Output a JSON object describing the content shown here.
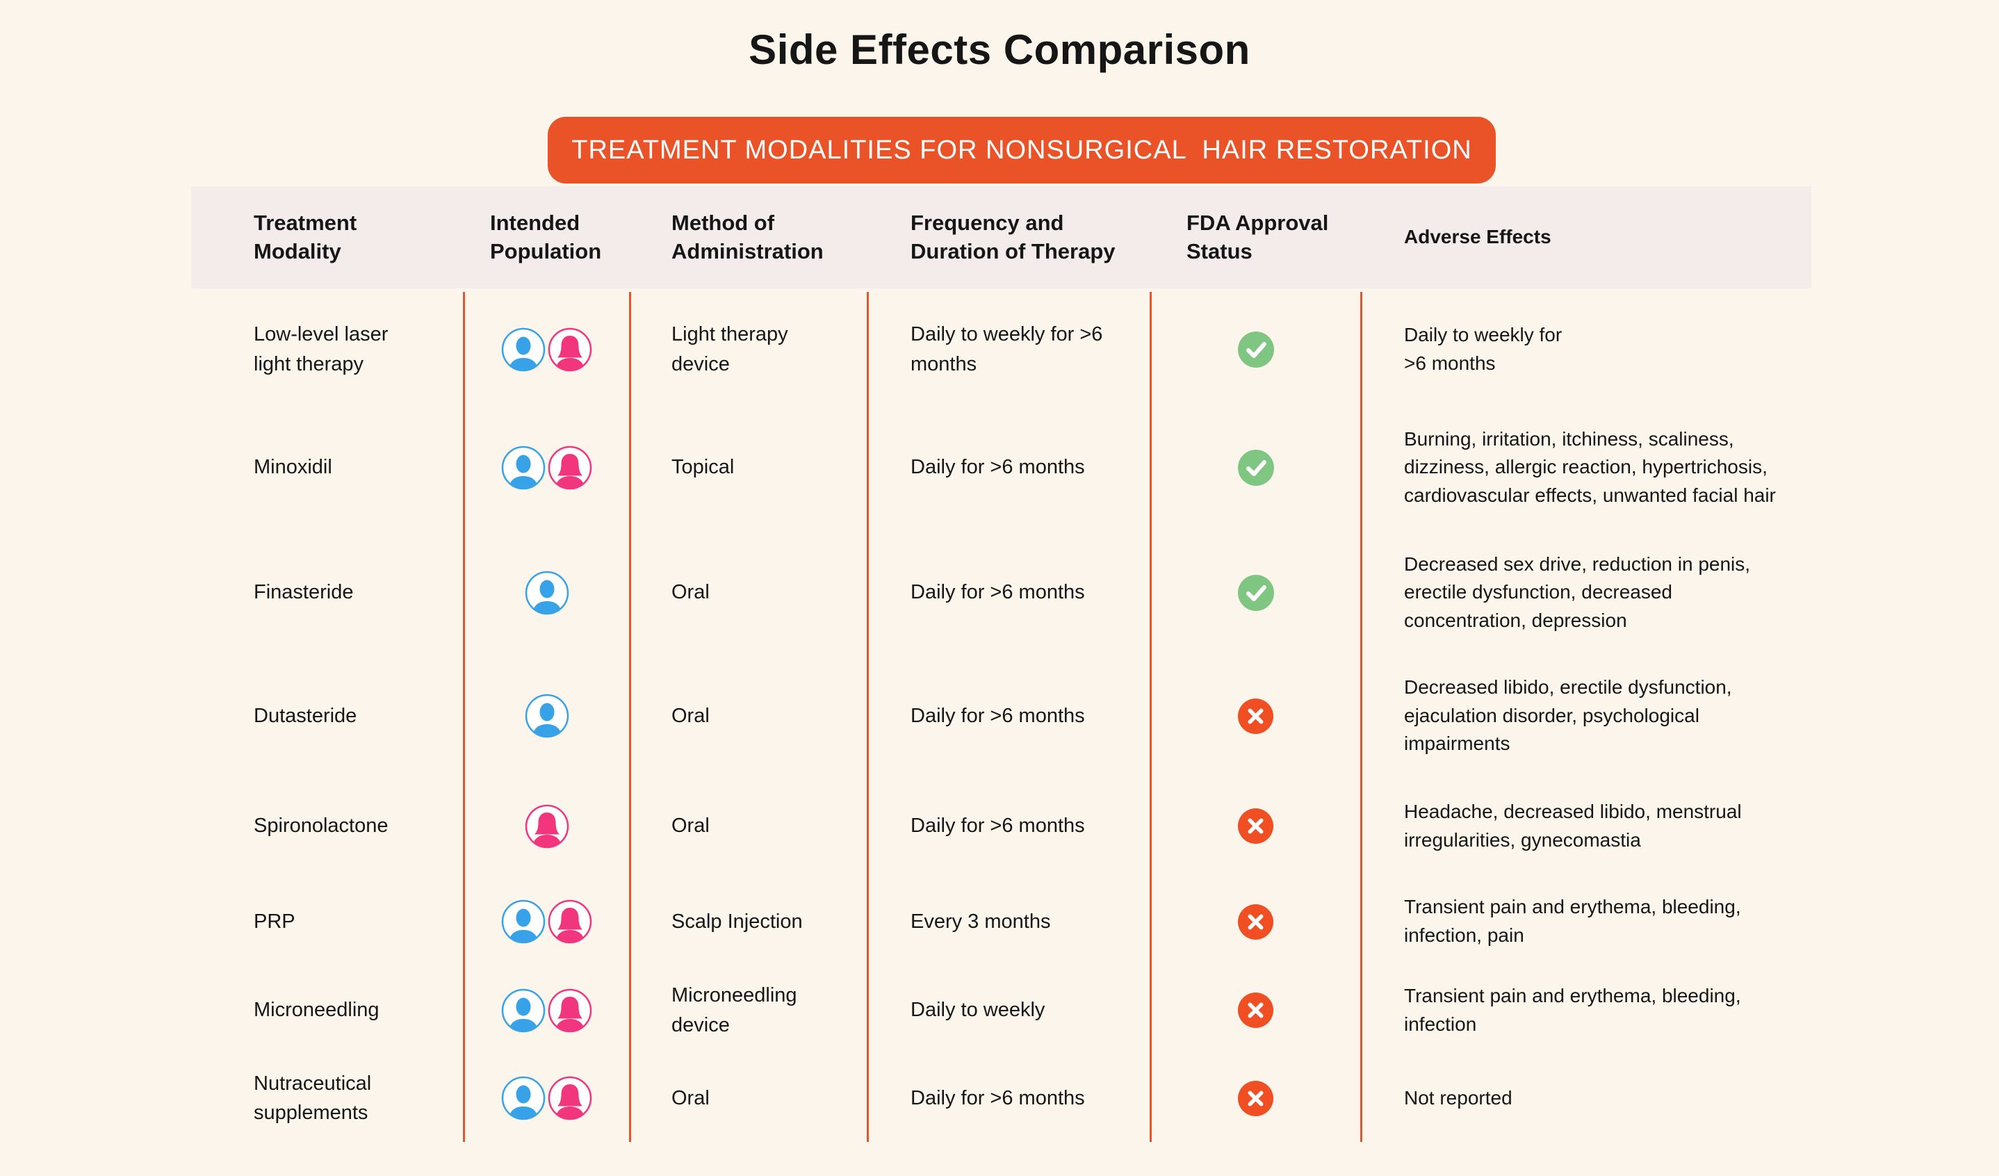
{
  "page": {
    "title": "Side Effects Comparison",
    "background_color": "#FCF5EC",
    "text_color": "#161616"
  },
  "banner": {
    "label": "TREATMENT MODALITIES FOR NONSURGICAL  HAIR RESTORATION",
    "background_color": "#E95327",
    "text_color": "#FFFFFF"
  },
  "icons": {
    "male_icon_color": "#38A2E8",
    "female_icon_color": "#F2367E",
    "approved_icon": "check-circle",
    "approved_color": "#80C683",
    "not_approved_icon": "x-circle",
    "not_approved_color": "#F04F23"
  },
  "table": {
    "header_background_color": "#F4ECEA",
    "divider_color": "#E4572E",
    "columns": [
      {
        "key": "modality",
        "label": "Treatment\nModality"
      },
      {
        "key": "population",
        "label": "Intended\nPopulation"
      },
      {
        "key": "method",
        "label": "Method of\nAdministration"
      },
      {
        "key": "frequency",
        "label": "Frequency and\nDuration of Therapy"
      },
      {
        "key": "fda",
        "label": "FDA Approval\nStatus"
      },
      {
        "key": "adverse",
        "label": "Adverse Effects"
      }
    ],
    "rows": [
      {
        "modality": "Low-level laser\nlight therapy",
        "population": [
          "male",
          "female"
        ],
        "method": "Light therapy\ndevice",
        "frequency": "Daily to weekly for >6\nmonths",
        "fda_approved": true,
        "adverse": "Daily to weekly for\n>6 months"
      },
      {
        "modality": "Minoxidil",
        "population": [
          "male",
          "female"
        ],
        "method": "Topical",
        "frequency": "Daily for >6 months",
        "fda_approved": true,
        "adverse": "Burning, irritation, itchiness, scaliness,\ndizziness, allergic reaction, hypertrichosis,\ncardiovascular effects, unwanted facial hair"
      },
      {
        "modality": "Finasteride",
        "population": [
          "male"
        ],
        "method": "Oral",
        "frequency": "Daily for >6 months",
        "fda_approved": true,
        "adverse": "Decreased sex drive, reduction in penis,\nerectile dysfunction, decreased\nconcentration, depression"
      },
      {
        "modality": "Dutasteride",
        "population": [
          "male"
        ],
        "method": "Oral",
        "frequency": "Daily for >6 months",
        "fda_approved": false,
        "adverse": "Decreased libido, erectile dysfunction,\nejaculation disorder, psychological\nimpairments"
      },
      {
        "modality": "Spironolactone",
        "population": [
          "female"
        ],
        "method": "Oral",
        "frequency": "Daily for >6 months",
        "fda_approved": false,
        "adverse": "Headache, decreased libido, menstrual\nirregularities, gynecomastia"
      },
      {
        "modality": "PRP",
        "population": [
          "male",
          "female"
        ],
        "method": "Scalp Injection",
        "frequency": "Every 3 months",
        "fda_approved": false,
        "adverse": "Transient pain and erythema, bleeding,\ninfection, pain"
      },
      {
        "modality": "Microneedling",
        "population": [
          "male",
          "female"
        ],
        "method": "Microneedling\ndevice",
        "frequency": "Daily to weekly",
        "fda_approved": false,
        "adverse": "Transient pain and erythema, bleeding,\ninfection"
      },
      {
        "modality": "Nutraceutical\nsupplements",
        "population": [
          "male",
          "female"
        ],
        "method": "Oral",
        "frequency": "Daily for >6 months",
        "fda_approved": false,
        "adverse": "Not reported"
      }
    ]
  }
}
